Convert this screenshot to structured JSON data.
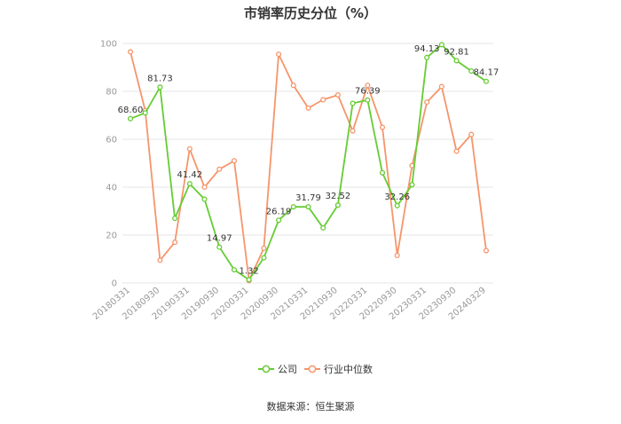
{
  "chart_data": {
    "type": "line",
    "title": "市销率历史分位（%）",
    "xlabel": "",
    "ylabel": "",
    "ylim": [
      0,
      100
    ],
    "yticks": [
      0,
      20,
      40,
      60,
      80,
      100
    ],
    "x": [
      "20180331",
      "20180630",
      "20180930",
      "20181231",
      "20190331",
      "20190630",
      "20190930",
      "20191231",
      "20200331",
      "20200630",
      "20200930",
      "20201231",
      "20210331",
      "20210630",
      "20210930",
      "20211231",
      "20220331",
      "20220630",
      "20220930",
      "20221231",
      "20230331",
      "20230630",
      "20230930",
      "20231231",
      "20240329"
    ],
    "xtick_labels": [
      "20180331",
      "20180930",
      "20190331",
      "20190930",
      "20200331",
      "20200930",
      "20210331",
      "20210930",
      "20220331",
      "20220930",
      "20230331",
      "20230930",
      "20240329"
    ],
    "series": [
      {
        "name": "公司",
        "color": "#66cc33",
        "values": [
          68.6,
          71.0,
          81.73,
          27.0,
          41.42,
          35.0,
          14.97,
          5.5,
          1.32,
          10.5,
          26.19,
          31.79,
          31.79,
          23.0,
          32.52,
          75.0,
          76.39,
          46.0,
          32.26,
          41.0,
          94.13,
          99.5,
          92.81,
          88.5,
          84.17
        ]
      },
      {
        "name": "行业中位数",
        "color": "#f5956b",
        "values": [
          96.5,
          72.0,
          9.5,
          17.0,
          56.0,
          40.0,
          47.5,
          51.0,
          1.0,
          14.5,
          95.5,
          82.5,
          73.0,
          76.5,
          78.5,
          63.5,
          82.5,
          65.0,
          11.5,
          49.0,
          75.5,
          82.0,
          55.0,
          62.0,
          13.5
        ]
      }
    ],
    "data_labels": [
      {
        "series": 0,
        "index": 0,
        "text": "68.60"
      },
      {
        "series": 0,
        "index": 2,
        "text": "81.73"
      },
      {
        "series": 0,
        "index": 4,
        "text": "41.42"
      },
      {
        "series": 0,
        "index": 6,
        "text": "14.97"
      },
      {
        "series": 0,
        "index": 8,
        "text": "1.32"
      },
      {
        "series": 0,
        "index": 10,
        "text": "26.19"
      },
      {
        "series": 0,
        "index": 12,
        "text": "31.79"
      },
      {
        "series": 0,
        "index": 14,
        "text": "32.52"
      },
      {
        "series": 0,
        "index": 16,
        "text": "76.39"
      },
      {
        "series": 0,
        "index": 18,
        "text": "32.26"
      },
      {
        "series": 0,
        "index": 20,
        "text": "94.13"
      },
      {
        "series": 0,
        "index": 22,
        "text": "92.81"
      },
      {
        "series": 0,
        "index": 24,
        "text": "84.17"
      }
    ],
    "legend_position": "bottom-center",
    "grid": true
  },
  "source_text": "数据来源：恒生聚源"
}
